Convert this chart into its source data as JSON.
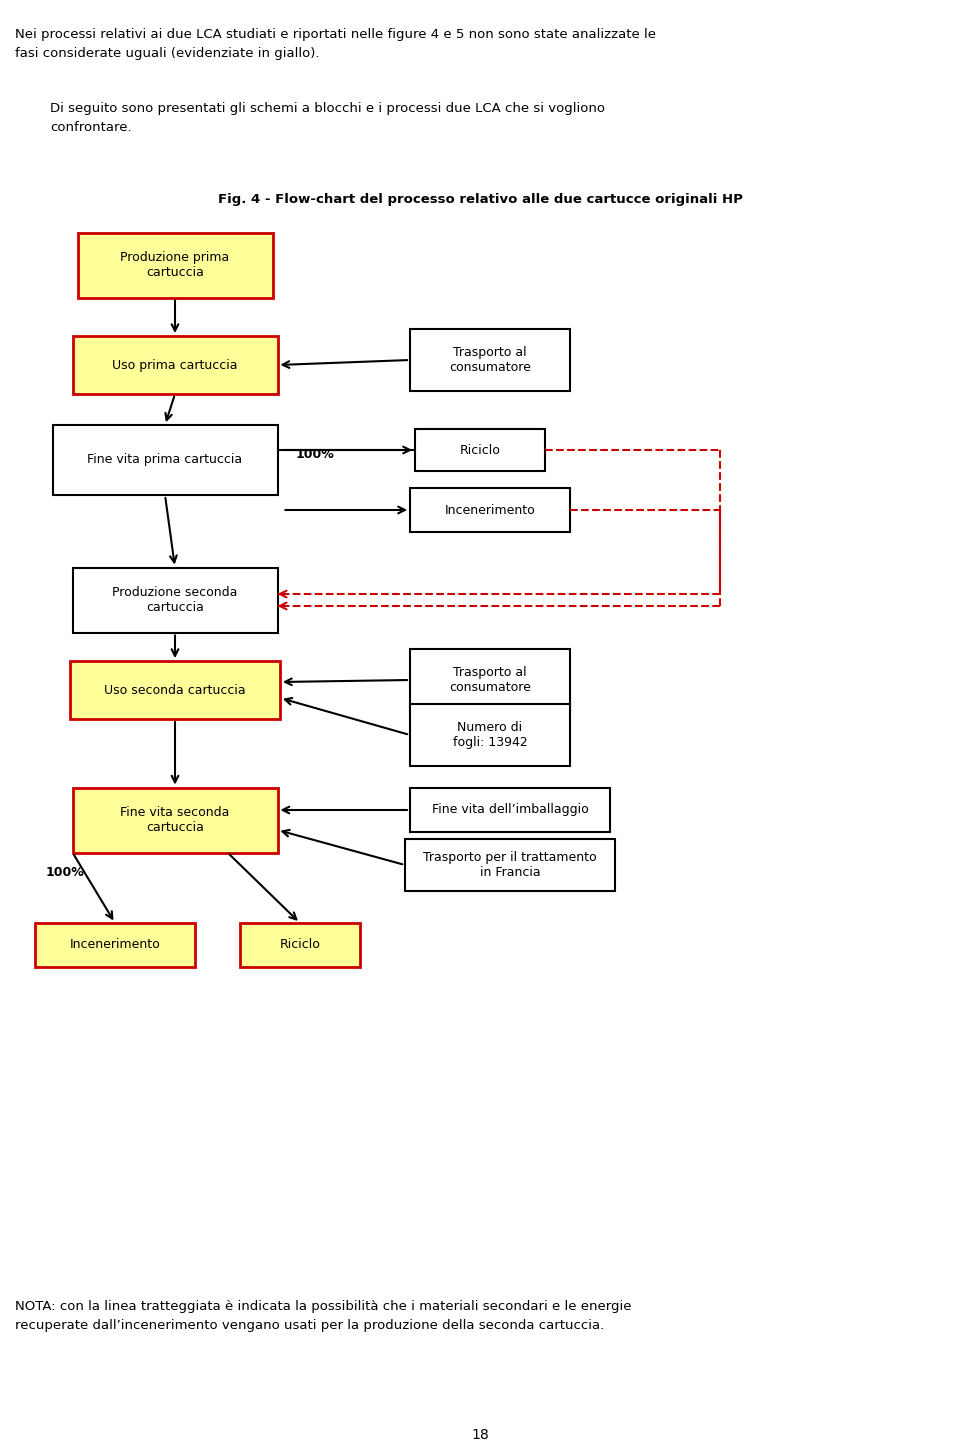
{
  "title": "Fig. 4 - Flow-chart del processo relativo alle due cartucce originali HP",
  "header_text1": "Nei processi relativi ai due LCA studiati e riportati nelle figure 4 e 5 non sono state analizzate le\nfasi considerate uguali (evidenziate in giallo).",
  "header_text2": "Di seguito sono presentati gli schemi a blocchi e i processi due LCA che si vogliono\nconfrontare.",
  "footer_text": "NOTA: con la linea tratteggiata è indicata la possibilità che i materiali secondari e le energie\nrecuperate dall’incenerimento vengano usati per la produzione della seconda cartuccia.",
  "page_number": "18",
  "yellow_fill": "#FFFF99",
  "white_fill": "#FFFFFF",
  "red_border": "#CC0000",
  "black_border": "#000000"
}
